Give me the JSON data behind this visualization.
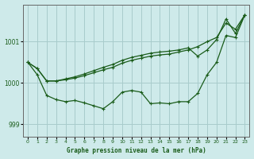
{
  "xlabel": "Graphe pression niveau de la mer (hPa)",
  "background_color": "#ceeaea",
  "grid_color": "#a8cccc",
  "line_color": "#1a5c1a",
  "ylim": [
    998.7,
    1001.9
  ],
  "yticks": [
    999,
    1000,
    1001
  ],
  "xlim": [
    -0.5,
    23.5
  ],
  "xticks": [
    0,
    1,
    2,
    3,
    4,
    5,
    6,
    7,
    8,
    9,
    10,
    11,
    12,
    13,
    14,
    15,
    16,
    17,
    18,
    19,
    20,
    21,
    22,
    23
  ],
  "line_upper1": [
    1000.5,
    1000.35,
    1000.05,
    1000.05,
    1000.08,
    1000.12,
    1000.18,
    1000.25,
    1000.32,
    1000.38,
    1000.48,
    1000.55,
    1000.6,
    1000.65,
    1000.68,
    1000.7,
    1000.75,
    1000.8,
    1000.88,
    1001.0,
    1001.1,
    1001.45,
    1001.3,
    1001.65
  ],
  "line_upper2": [
    1000.5,
    1000.35,
    1000.05,
    1000.05,
    1000.1,
    1000.15,
    1000.22,
    1000.3,
    1000.38,
    1000.45,
    1000.55,
    1000.62,
    1000.67,
    1000.72,
    1000.75,
    1000.77,
    1000.8,
    1000.85,
    1000.65,
    1000.8,
    1001.05,
    1001.55,
    1001.2,
    1001.65
  ],
  "line_lower": [
    1000.5,
    1000.2,
    999.7,
    999.6,
    999.55,
    999.58,
    999.52,
    999.45,
    999.38,
    999.55,
    999.78,
    999.82,
    999.78,
    999.5,
    999.52,
    999.5,
    999.55,
    999.55,
    999.75,
    1000.2,
    1000.5,
    1001.15,
    1001.1,
    1001.65
  ]
}
